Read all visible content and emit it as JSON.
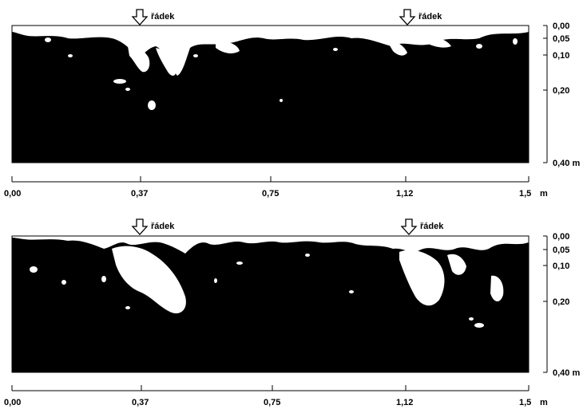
{
  "row_label": "řádek",
  "depth_unit": "m",
  "length_unit": "m",
  "depth_ticks": [
    "0,00",
    "0,05",
    "0,10",
    "0,20",
    "0,40"
  ],
  "length_ticks": [
    "0,00",
    "0,37",
    "0,75",
    "1,12",
    "1,5"
  ],
  "colors": {
    "soil": "#000000",
    "pore": "#ffffff"
  },
  "panels": [
    {
      "id": "top"
    },
    {
      "id": "bottom"
    }
  ]
}
